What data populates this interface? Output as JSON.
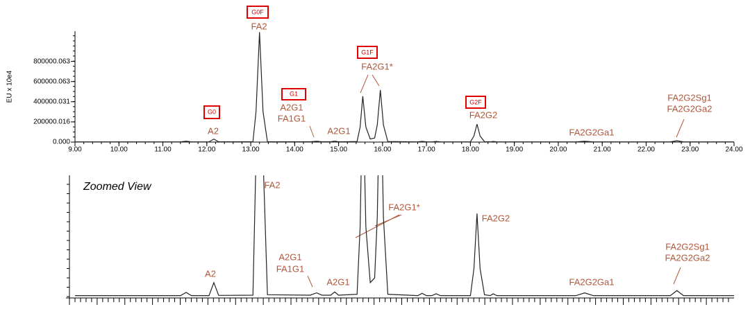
{
  "chart_data": [
    {
      "type": "line",
      "ylabel": "EU x 10e4",
      "color": "#222222",
      "x": [
        9.0,
        11.4,
        11.53,
        11.65,
        12.05,
        12.16,
        12.27,
        13.05,
        13.12,
        13.2,
        13.28,
        13.38,
        14.35,
        14.5,
        14.62,
        14.82,
        14.91,
        15.0,
        15.42,
        15.49,
        15.55,
        15.62,
        15.72,
        15.82,
        15.88,
        15.95,
        16.02,
        16.12,
        16.8,
        16.9,
        17.0,
        17.12,
        17.22,
        17.32,
        18.0,
        18.08,
        18.15,
        18.22,
        18.32,
        18.45,
        18.52,
        18.6,
        20.4,
        20.6,
        20.8,
        22.55,
        22.7,
        22.85,
        24.0
      ],
      "values": [
        2000,
        2000,
        9000,
        2000,
        2000,
        30000,
        2500,
        3000,
        300000,
        1090000,
        300000,
        4000,
        3000,
        8000,
        3000,
        3000,
        10000,
        3000,
        5000,
        150000,
        455000,
        150000,
        30000,
        40000,
        170000,
        517000,
        170000,
        5000,
        2000,
        7000,
        2000,
        2000,
        6000,
        2000,
        2000,
        60000,
        178000,
        60000,
        4000,
        2000,
        6000,
        2000,
        2000,
        8000,
        2000,
        2000,
        13000,
        2000,
        2000
      ],
      "xlim": [
        9,
        24
      ],
      "xticks": [
        {
          "value": 9,
          "label": "9.00"
        },
        {
          "value": 10,
          "label": "10.00"
        },
        {
          "value": 11,
          "label": "11.00"
        },
        {
          "value": 12,
          "label": "12.00"
        },
        {
          "value": 13,
          "label": "13.00"
        },
        {
          "value": 14,
          "label": "14.00"
        },
        {
          "value": 15,
          "label": "15.00"
        },
        {
          "value": 16,
          "label": "16.00"
        },
        {
          "value": 17,
          "label": "17.00"
        },
        {
          "value": 18,
          "label": "18.00"
        },
        {
          "value": 19,
          "label": "19.00"
        },
        {
          "value": 20,
          "label": "20.00"
        },
        {
          "value": 21,
          "label": "21.00"
        },
        {
          "value": 22,
          "label": "22.00"
        },
        {
          "value": 23,
          "label": "23.00"
        },
        {
          "value": 24,
          "label": "24.00"
        }
      ],
      "ylim": [
        0,
        1100000
      ],
      "yticks": [
        {
          "value": 0,
          "label": "0.000"
        },
        200000.016,
        400000.031,
        600000.063,
        800000.063
      ],
      "annotations": [
        "FA2",
        "FA2G1*",
        "A2G1",
        "FA1G1",
        "A2",
        "A2G1",
        "FA2G2",
        "FA2G2Ga1",
        "FA2G2Sg1",
        "FA2G2Ga2"
      ],
      "peak_tags": [
        "G0F",
        "G1F",
        "G1",
        "G0",
        "G2F"
      ]
    },
    {
      "type": "line",
      "title": "Zoomed View",
      "ylim": [
        0,
        260000
      ],
      "annotations": [
        "FA2",
        "FA2G1*",
        "A2G1",
        "FA1G1",
        "A2",
        "A2G1",
        "FA2G2",
        "FA2G2Ga1",
        "FA2G2Sg1",
        "FA2G2Ga2"
      ]
    }
  ]
}
